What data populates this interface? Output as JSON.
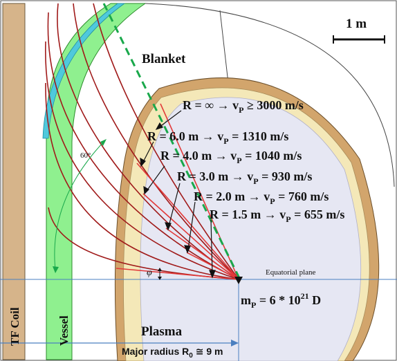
{
  "labels": {
    "tf_coil": "TF Coil",
    "vessel": "Vessel",
    "blanket": "Blanket",
    "plasma": "Plasma",
    "scale": "1 m",
    "angle": "60°",
    "phi": "φ",
    "equatorial_plane": "Equatorial plane",
    "mass_prefix": "m",
    "mass_sub": "P",
    "mass_mid": " = 6 * 10",
    "mass_sup": "21",
    "mass_suffix": " D",
    "major_radius_prefix": "Major radius R",
    "major_radius_sub": "0",
    "major_radius_suffix": " ≅ 9 m"
  },
  "trajectories": [
    {
      "r": "R = ∞ → v",
      "sub": "P",
      "v": " ≥ 3000 m/s"
    },
    {
      "r": "R = 6.0 m → v",
      "sub": "P",
      "v": " = 1310 m/s"
    },
    {
      "r": "R = 4.0 m → v",
      "sub": "P",
      "v": " = 1040 m/s"
    },
    {
      "r": "R = 3.0 m → v",
      "sub": "P",
      "v": " = 930 m/s"
    },
    {
      "r": "R = 2.0 m → v",
      "sub": "P",
      "v": " = 760 m/s"
    },
    {
      "r": "R = 1.5 m → v",
      "sub": "P",
      "v": " = 655 m/s"
    }
  ],
  "colors": {
    "tf_coil": "#d6b48a",
    "vessel": "#8ff08f",
    "blanket_cyan": "#4fc9dc",
    "blanket_inner": "#f4e8b8",
    "plasma": "#e6e7f3",
    "trajectory_dark": "#a01a1a",
    "trajectory_red": "#e23a3a",
    "dashed_line": "#19a84b",
    "axis_line": "#4a7fc0"
  }
}
